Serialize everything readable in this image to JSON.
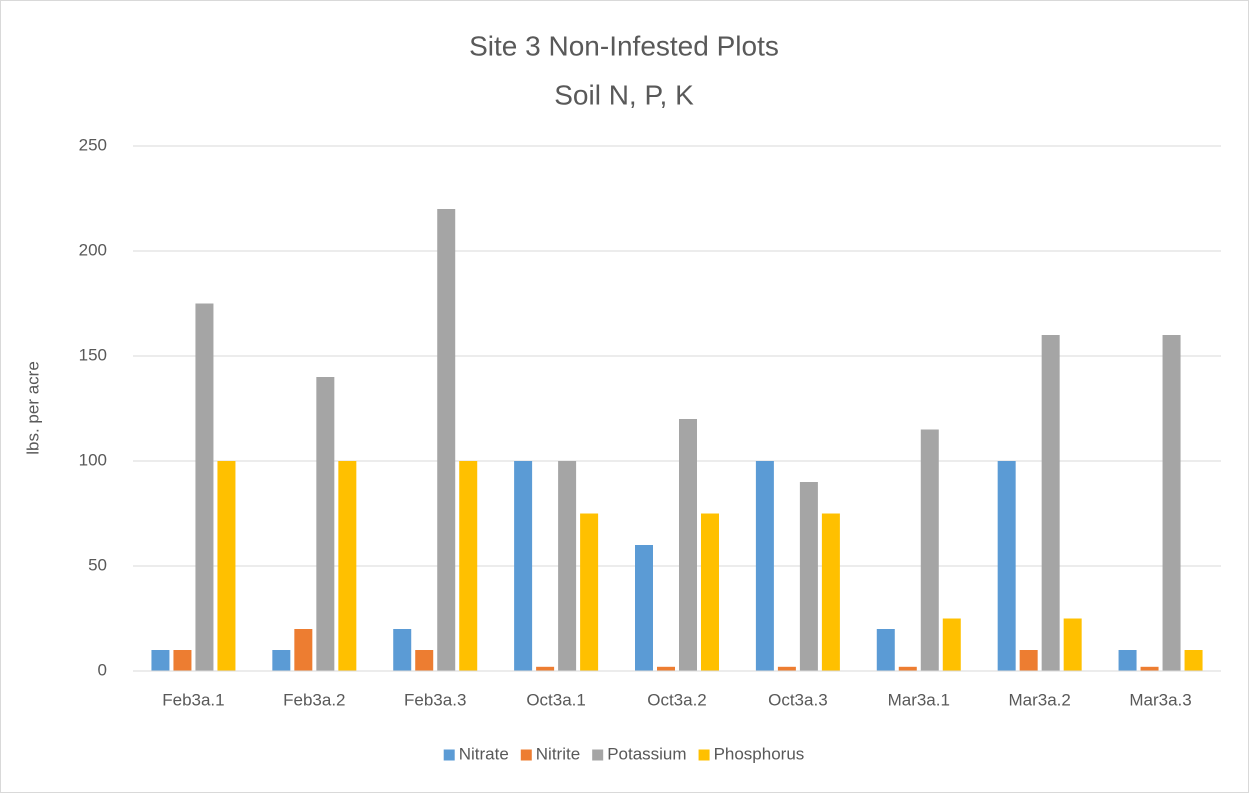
{
  "chart_data": {
    "type": "bar",
    "title": "Site 3 Non-Infested Plots",
    "subtitle": "Soil N, P, K",
    "y_label": "lbs. per acre",
    "categories": [
      "Feb3a.1",
      "Feb3a.2",
      "Feb3a.3",
      "Oct3a.1",
      "Oct3a.2",
      "Oct3a.3",
      "Mar3a.1",
      "Mar3a.2",
      "Mar3a.3"
    ],
    "series": [
      {
        "name": "Nitrate",
        "color": "#5b9bd5",
        "values": [
          10,
          10,
          20,
          100,
          60,
          100,
          20,
          100,
          10
        ]
      },
      {
        "name": "Nitrite",
        "color": "#ed7d31",
        "values": [
          10,
          20,
          10,
          2,
          2,
          2,
          2,
          10,
          2
        ]
      },
      {
        "name": "Potassium",
        "color": "#a5a5a5",
        "values": [
          175,
          140,
          220,
          100,
          120,
          90,
          115,
          160,
          160
        ]
      },
      {
        "name": "Phosphorus",
        "color": "#ffc000",
        "values": [
          100,
          100,
          100,
          75,
          75,
          75,
          25,
          25,
          10
        ]
      }
    ],
    "ylim": [
      0,
      250
    ],
    "yticks": [
      0,
      50,
      100,
      150,
      200,
      250
    ],
    "grid": true,
    "legend": "bottom"
  }
}
